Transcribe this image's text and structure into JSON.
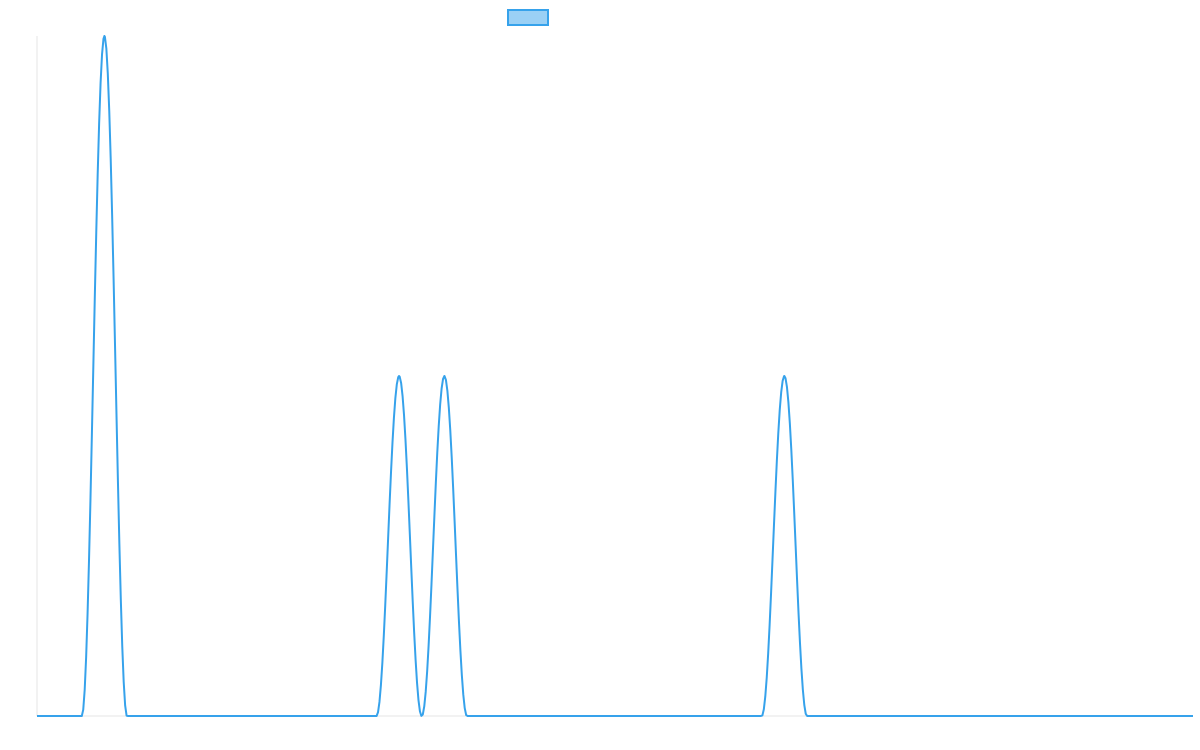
{
  "chart_data": {
    "type": "line",
    "title": "",
    "xlabel": "",
    "ylabel": "",
    "grid": false,
    "legend_position": "top-center",
    "xlim": [
      0,
      1
    ],
    "ylim": [
      0,
      1
    ],
    "series": [
      {
        "name": "",
        "color": "#36a2eb",
        "fill_color": "#9ad0f5",
        "peaks": [
          {
            "center": 0.0583,
            "height": 1.0,
            "half_width": 0.0195
          },
          {
            "center": 0.3132,
            "height": 0.5,
            "half_width": 0.0195
          },
          {
            "center": 0.3524,
            "height": 0.5,
            "half_width": 0.0195
          },
          {
            "center": 0.6465,
            "height": 0.5,
            "half_width": 0.0195
          }
        ],
        "samples": 801
      }
    ]
  }
}
